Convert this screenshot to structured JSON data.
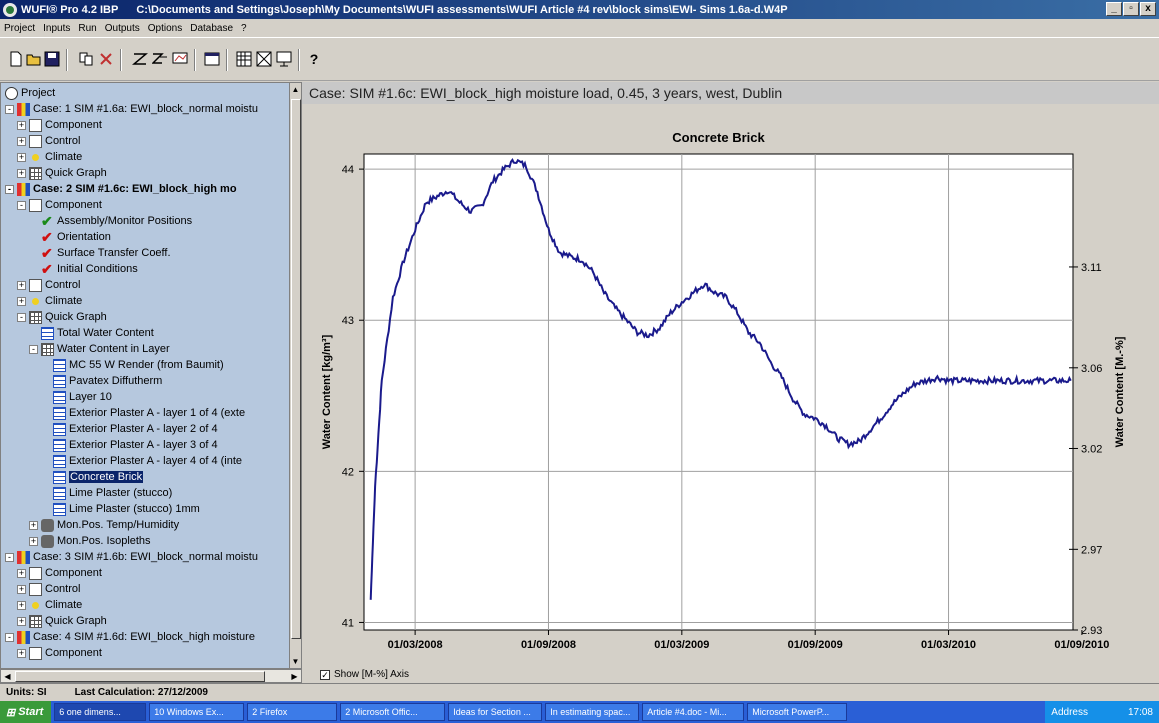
{
  "window": {
    "app_title": "WUFI® Pro 4.2 IBP",
    "file_path": "C:\\Documents and Settings\\Joseph\\My Documents\\WUFI assessments\\WUFI Article #4 rev\\block sims\\EWI- Sims 1.6a-d.W4P",
    "buttons": [
      "_",
      "▫",
      "x"
    ]
  },
  "menu": [
    "Project",
    "Inputs",
    "Run",
    "Outputs",
    "Options",
    "Database",
    "?"
  ],
  "tree": {
    "root": "Project",
    "nodes": [
      {
        "label": "Case: 1 SIM #1.6a: EWI_block_normal moistu",
        "icon": "case-icon",
        "expander": "-",
        "bold": false
      },
      {
        "label": "Component",
        "icon": "component-icon",
        "expander": "+"
      },
      {
        "label": "Control",
        "icon": "control-icon",
        "expander": "+"
      },
      {
        "label": "Climate",
        "icon": "climate-icon",
        "expander": "+"
      },
      {
        "label": "Quick Graph",
        "icon": "grid-icon",
        "expander": "+"
      },
      {
        "label": "Case: 2 SIM #1.6c: EWI_block_high mo",
        "icon": "case-icon",
        "expander": "-",
        "bold": true
      },
      {
        "label": "Component",
        "icon": "component-icon",
        "expander": "-"
      },
      {
        "label": "Assembly/Monitor Positions",
        "icon": "check-green-icon"
      },
      {
        "label": "Orientation",
        "icon": "check-red-icon"
      },
      {
        "label": "Surface Transfer Coeff.",
        "icon": "check-red-icon"
      },
      {
        "label": "Initial Conditions",
        "icon": "check-red-icon"
      },
      {
        "label": "Control",
        "icon": "control-icon",
        "expander": "+"
      },
      {
        "label": "Climate",
        "icon": "climate-icon",
        "expander": "+"
      },
      {
        "label": "Quick Graph",
        "icon": "grid-icon",
        "expander": "-"
      },
      {
        "label": "Total Water Content",
        "icon": "chart-icon"
      },
      {
        "label": "Water Content in Layer",
        "icon": "grid-icon",
        "expander": "-"
      },
      {
        "label": "MC 55 W Render (from Baumit)",
        "icon": "chart-icon"
      },
      {
        "label": "Pavatex Diffutherm",
        "icon": "chart-icon"
      },
      {
        "label": "Layer 10",
        "icon": "chart-icon"
      },
      {
        "label": "Exterior Plaster A  - layer 1 of 4 (exte",
        "icon": "chart-icon"
      },
      {
        "label": "Exterior Plaster A  - layer 2 of 4",
        "icon": "chart-icon"
      },
      {
        "label": "Exterior Plaster A  - layer 3 of 4",
        "icon": "chart-icon"
      },
      {
        "label": "Exterior Plaster A  - layer 4 of 4 (inte",
        "icon": "chart-icon"
      },
      {
        "label": "Concrete Brick",
        "icon": "chart-icon",
        "selected": true
      },
      {
        "label": "Lime Plaster (stucco)",
        "icon": "chart-icon"
      },
      {
        "label": "Lime Plaster (stucco) 1mm",
        "icon": "chart-icon"
      },
      {
        "label": "Mon.Pos. Temp/Humidity",
        "icon": "monitor-icon",
        "expander": "+"
      },
      {
        "label": "Mon.Pos. Isopleths",
        "icon": "monitor-icon",
        "expander": "+"
      },
      {
        "label": "Case: 3 SIM #1.6b: EWI_block_normal moistu",
        "icon": "case-icon",
        "expander": "-"
      },
      {
        "label": "Component",
        "icon": "component-icon",
        "expander": "+"
      },
      {
        "label": "Control",
        "icon": "control-icon",
        "expander": "+"
      },
      {
        "label": "Climate",
        "icon": "climate-icon",
        "expander": "+"
      },
      {
        "label": "Quick Graph",
        "icon": "grid-icon",
        "expander": "+"
      },
      {
        "label": "Case: 4 SIM #1.6d: EWI_block_high moisture",
        "icon": "case-icon",
        "expander": "-"
      },
      {
        "label": "Component",
        "icon": "component-icon",
        "expander": "+"
      }
    ]
  },
  "main": {
    "case_title": "Case: SIM #1.6c: EWI_block_high moisture load, 0.45, 3 years, west, Dublin",
    "show_axis_label": "Show [M-%] Axis"
  },
  "chart_data": {
    "type": "line",
    "title": "Concrete Brick",
    "ylabel": "Water Content [kg/m³]",
    "y2label": "Water Content [M.-%]",
    "ylim": [
      40.95,
      44.1
    ],
    "y2lim": [
      2.93,
      3.166
    ],
    "yticks": [
      41,
      42,
      43,
      44
    ],
    "y2ticks": [
      "2.93",
      "2.97",
      "3.02",
      "3.06",
      "3.11"
    ],
    "y2tick_values": [
      2.93,
      2.97,
      3.02,
      3.06,
      3.11
    ],
    "xlim": [
      -0.3,
      31.6
    ],
    "xticks": [
      {
        "label": "01/03/2008",
        "month": 2
      },
      {
        "label": "01/09/2008",
        "month": 8
      },
      {
        "label": "01/03/2009",
        "month": 14
      },
      {
        "label": "01/09/2009",
        "month": 20
      },
      {
        "label": "01/03/2010",
        "month": 26
      },
      {
        "label": "01/09/2010",
        "month": 32
      }
    ],
    "line_color": "#1a1a8c",
    "series": [
      {
        "x": [
          0,
          0.2,
          0.5,
          1,
          1.5,
          2,
          2.5,
          3,
          3.5,
          4,
          4.5,
          5,
          5.5,
          6,
          6.5,
          7,
          7.5,
          8,
          8.5,
          9,
          9.5,
          10,
          10.5,
          11,
          11.5,
          12,
          12.5,
          13,
          13.5,
          14,
          14.5,
          15,
          15.5,
          16,
          16.5,
          17,
          17.5,
          18,
          18.5,
          19,
          19.5,
          20,
          20.5,
          21,
          21.5,
          22,
          22.5,
          23,
          23.5,
          24,
          24.5,
          25,
          25.5,
          26,
          26.5,
          27,
          27.5,
          28,
          28.5,
          29,
          29.5,
          30,
          30.5,
          31,
          31.5
        ],
        "y": [
          41.15,
          41.9,
          42.6,
          43.15,
          43.4,
          43.6,
          43.78,
          43.82,
          43.86,
          43.78,
          43.72,
          43.76,
          43.92,
          44.0,
          44.06,
          44.02,
          43.85,
          43.6,
          43.45,
          43.42,
          43.4,
          43.32,
          43.18,
          43.08,
          43.0,
          42.92,
          42.9,
          42.95,
          43.05,
          43.12,
          43.18,
          43.24,
          43.18,
          43.15,
          43.05,
          42.92,
          42.85,
          42.72,
          42.62,
          42.48,
          42.38,
          42.35,
          42.3,
          42.22,
          42.18,
          42.2,
          42.28,
          42.36,
          42.45,
          42.52,
          42.58,
          42.6,
          42.62,
          42.6,
          42.6,
          42.6,
          42.6,
          42.6,
          42.6,
          42.6,
          42.6,
          42.6,
          42.6,
          42.6,
          42.6
        ]
      }
    ]
  },
  "status": {
    "units": "Units: SI",
    "last_calc": "Last Calculation: 27/12/2009"
  },
  "taskbar": {
    "start": "Start",
    "tasks": [
      "6 one dimens...",
      "10 Windows Ex...",
      "2 Firefox",
      "2 Microsoft Offic...",
      "Ideas for Section ...",
      "In estimating spac...",
      "Article #4.doc - Mi...",
      "Microsoft PowerP..."
    ],
    "address": "Address",
    "clock": "17:08"
  }
}
